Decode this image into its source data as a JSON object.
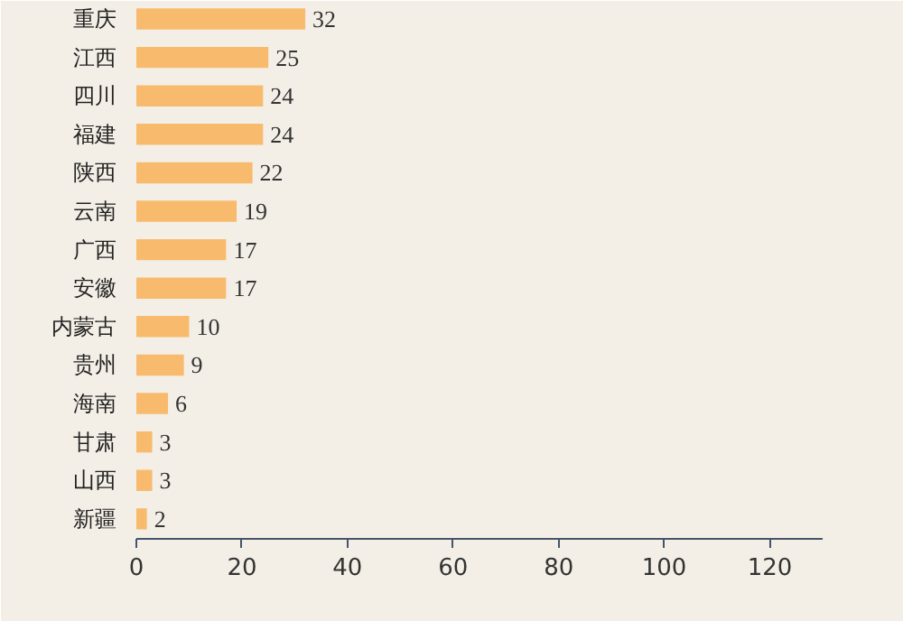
{
  "chart_data": {
    "type": "bar",
    "orientation": "horizontal",
    "categories": [
      "重庆",
      "江西",
      "四川",
      "福建",
      "陕西",
      "云南",
      "广西",
      "安徽",
      "内蒙古",
      "贵州",
      "海南",
      "甘肃",
      "山西",
      "新疆"
    ],
    "values": [
      32,
      25,
      24,
      24,
      22,
      19,
      17,
      17,
      10,
      9,
      6,
      3,
      3,
      2
    ],
    "color": "#f8bb6e",
    "xlim": [
      0,
      130
    ],
    "xticks": [
      0,
      20,
      40,
      60,
      80,
      100,
      120
    ],
    "data_labels": true
  }
}
